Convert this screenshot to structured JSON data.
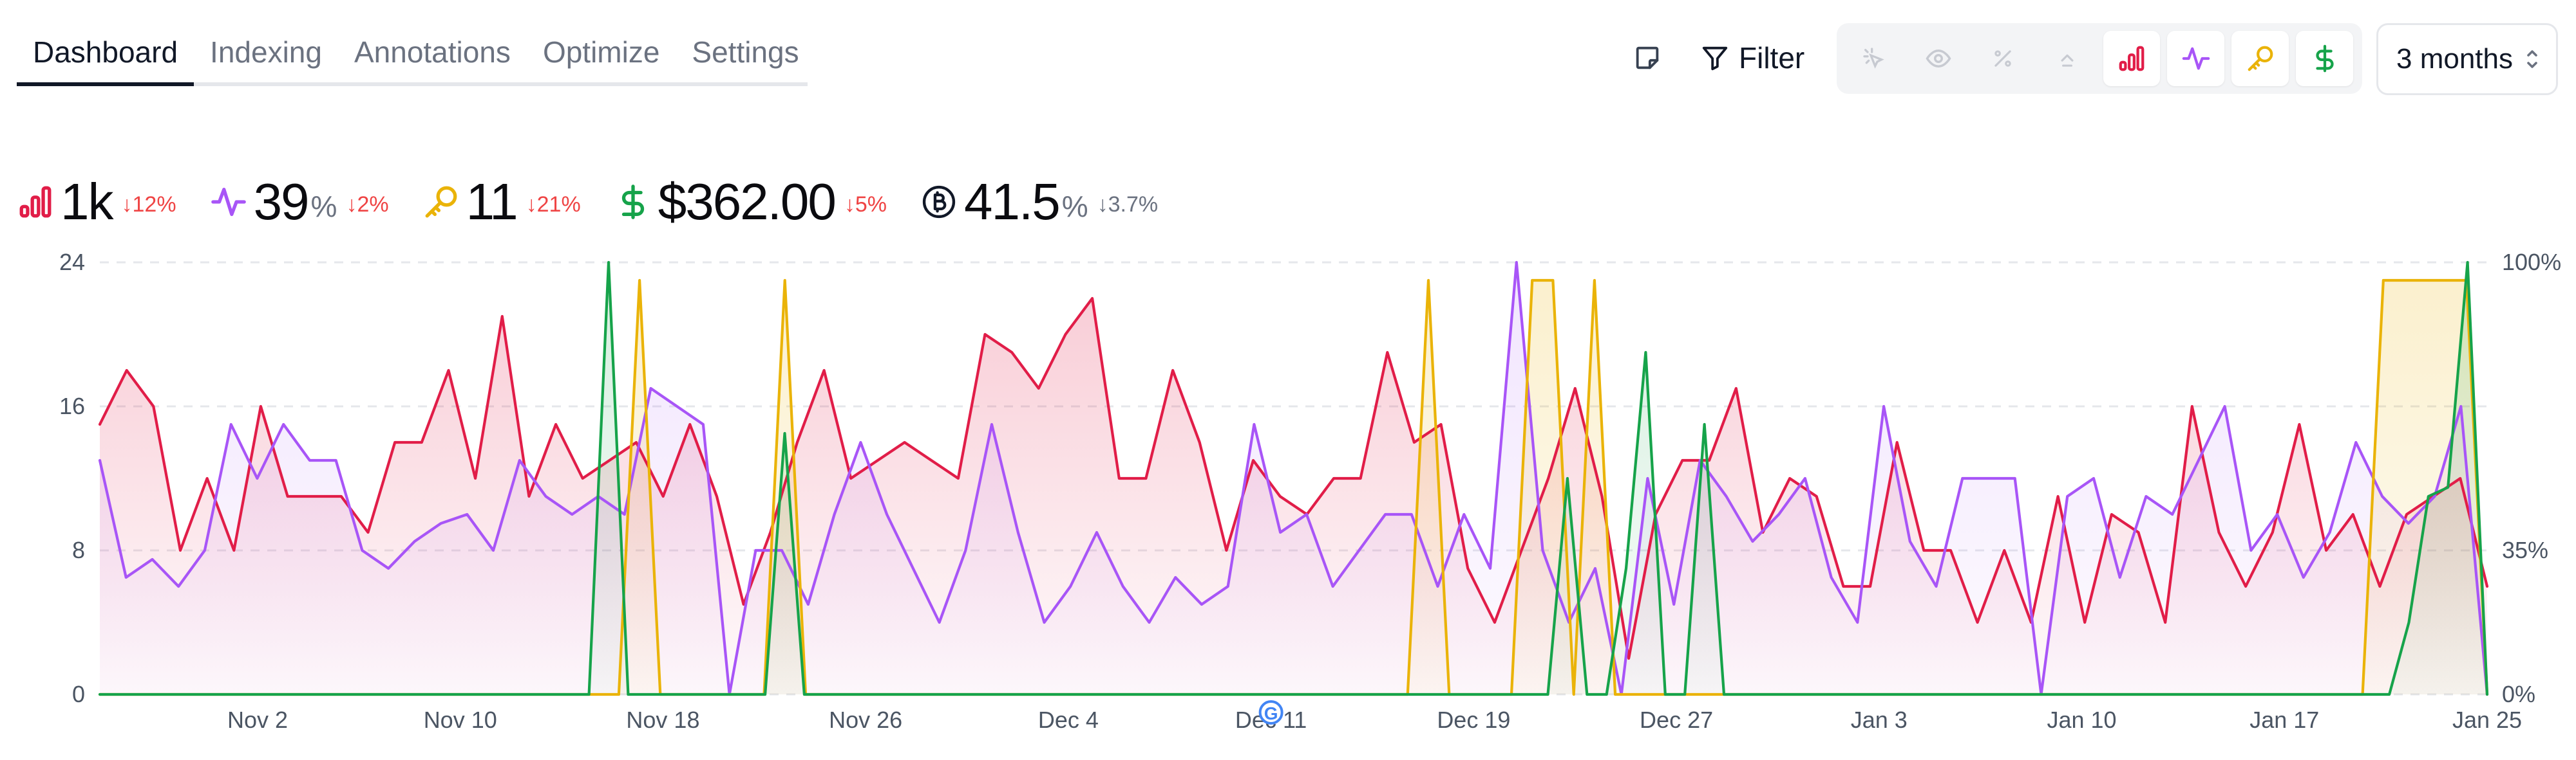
{
  "tabs": [
    {
      "label": "Dashboard",
      "active": true
    },
    {
      "label": "Indexing",
      "active": false
    },
    {
      "label": "Annotations",
      "active": false
    },
    {
      "label": "Optimize",
      "active": false
    },
    {
      "label": "Settings",
      "active": false
    }
  ],
  "toolbar": {
    "filter_label": "Filter",
    "range_label": "3 months",
    "toggles": [
      {
        "name": "clicks-icon",
        "active": false
      },
      {
        "name": "eye-icon",
        "active": false
      },
      {
        "name": "percent-icon",
        "active": false
      },
      {
        "name": "position-icon",
        "active": false
      },
      {
        "name": "bar-chart-icon",
        "active": true,
        "color": "#e11d48"
      },
      {
        "name": "pulse-icon",
        "active": true,
        "color": "#a855f7"
      },
      {
        "name": "key-icon",
        "active": true,
        "color": "#eab308"
      },
      {
        "name": "dollar-icon",
        "active": true,
        "color": "#16a34a"
      }
    ]
  },
  "stats": {
    "traffic": {
      "value": "1k",
      "delta": "↓12%"
    },
    "pulse": {
      "value": "39",
      "unit": "%",
      "delta": "↓2%"
    },
    "keywords": {
      "value": "11",
      "delta": "↓21%"
    },
    "revenue": {
      "value": "$362.00",
      "delta": "↓5%"
    },
    "bitcoin": {
      "value": "41.5",
      "unit": "%",
      "delta": "↓3.7%"
    }
  },
  "colors": {
    "red": "#e11d48",
    "purple": "#a855f7",
    "yellow": "#eab308",
    "green": "#16a34a",
    "grid": "#e5e7eb"
  },
  "chart_data": {
    "type": "line",
    "left_axis": {
      "ticks": [
        0,
        8,
        16,
        24
      ],
      "range": [
        0,
        24
      ]
    },
    "right_axis": {
      "ticks": [
        "0%",
        "35%",
        "100%"
      ]
    },
    "x_labels": [
      "Nov 2",
      "Nov 10",
      "Nov 18",
      "Nov 26",
      "Dec 4",
      "Dec 11",
      "Dec 19",
      "Dec 27",
      "Jan 3",
      "Jan 10",
      "Jan 17",
      "Jan 25"
    ],
    "annotation": {
      "label": "G",
      "at_label": "Dec 11"
    },
    "series": [
      {
        "name": "red",
        "values": [
          15,
          18,
          16,
          8,
          12,
          8,
          16,
          11,
          11,
          11,
          9,
          14,
          14,
          18,
          12,
          21,
          11,
          15,
          12,
          13,
          14,
          11,
          15,
          11,
          5,
          9,
          14,
          18,
          12,
          13,
          14,
          13,
          12,
          20,
          19,
          17,
          20,
          22,
          12,
          12,
          18,
          14,
          8,
          13,
          11,
          10,
          12,
          12,
          19,
          14,
          15,
          7,
          4,
          8,
          12,
          17,
          11,
          2,
          10,
          13,
          13,
          17,
          9,
          12,
          11,
          6,
          6,
          14,
          8,
          8,
          4,
          8,
          4,
          11,
          4,
          10,
          9,
          4,
          16,
          9,
          6,
          9,
          15,
          8,
          10,
          6,
          10,
          11,
          12,
          6
        ]
      },
      {
        "name": "purple",
        "values": [
          13,
          6.5,
          7.5,
          6,
          8,
          15,
          12,
          15,
          13,
          13,
          8,
          7,
          8.5,
          9.5,
          10,
          8,
          13,
          11,
          10,
          11,
          10,
          17,
          16,
          15,
          0,
          8,
          8,
          5,
          10,
          14,
          10,
          7,
          4,
          8,
          15,
          9,
          4,
          6,
          9,
          6,
          4,
          6.5,
          5,
          6,
          15,
          9,
          10,
          6,
          8,
          10,
          10,
          6,
          10,
          7,
          24,
          8,
          4,
          7,
          0,
          12,
          5,
          13,
          11,
          8.5,
          10,
          12,
          6.5,
          4,
          16,
          8.5,
          6,
          12,
          12,
          12,
          0,
          11,
          12,
          6.5,
          11,
          10,
          13,
          16,
          8,
          10,
          6.5,
          9,
          14,
          11,
          9.5,
          11,
          16,
          0
        ]
      },
      {
        "name": "yellow",
        "values": [
          0,
          0,
          0,
          0,
          0,
          0,
          0,
          0,
          0,
          0,
          0,
          0,
          0,
          0,
          0,
          0,
          0,
          0,
          0,
          0,
          0,
          0,
          0,
          0,
          0,
          0,
          23,
          0,
          0,
          0,
          0,
          0,
          0,
          23,
          0,
          0,
          0,
          0,
          0,
          0,
          0,
          0,
          0,
          0,
          0,
          0,
          0,
          0,
          0,
          0,
          0,
          0,
          0,
          0,
          0,
          0,
          0,
          0,
          0,
          0,
          0,
          0,
          0,
          0,
          23,
          0,
          0,
          0,
          0,
          23,
          23,
          0,
          23,
          0,
          0,
          0,
          0,
          0,
          0,
          0,
          0,
          0,
          0,
          0,
          0,
          0,
          0,
          0,
          0,
          0,
          0,
          0,
          0,
          0,
          0,
          0,
          0,
          0,
          0,
          0,
          0,
          0,
          0,
          0,
          0,
          0,
          0,
          0,
          0,
          0,
          23,
          23,
          23,
          23,
          23,
          0
        ]
      },
      {
        "name": "green",
        "values": [
          0,
          0,
          0,
          0,
          0,
          0,
          0,
          0,
          0,
          0,
          0,
          0,
          0,
          0,
          0,
          0,
          0,
          0,
          0,
          0,
          0,
          0,
          0,
          0,
          0,
          0,
          24,
          0,
          0,
          0,
          0,
          0,
          0,
          0,
          0,
          14.5,
          0,
          0,
          0,
          0,
          0,
          0,
          0,
          0,
          0,
          0,
          0,
          0,
          0,
          0,
          0,
          0,
          0,
          0,
          0,
          0,
          0,
          0,
          0,
          0,
          0,
          0,
          0,
          0,
          0,
          0,
          0,
          0,
          0,
          0,
          0,
          0,
          0,
          0,
          0,
          12,
          0,
          0,
          7,
          19,
          0,
          0,
          15,
          0,
          0,
          0,
          0,
          0,
          0,
          0,
          0,
          0,
          0,
          0,
          0,
          0,
          0,
          0,
          0,
          0,
          0,
          0,
          0,
          0,
          0,
          0,
          0,
          0,
          0,
          0,
          0,
          0,
          0,
          0,
          0,
          0,
          0,
          0,
          4,
          11,
          11.5,
          24,
          0
        ]
      }
    ]
  }
}
